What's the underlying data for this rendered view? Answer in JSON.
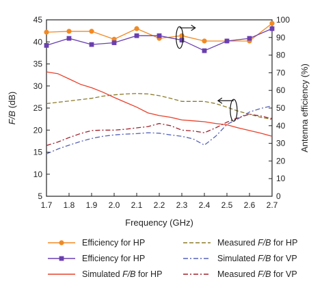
{
  "chart_data": {
    "type": "line",
    "x": [
      1.7,
      1.75,
      1.8,
      1.85,
      1.9,
      1.95,
      2.0,
      2.05,
      2.1,
      2.15,
      2.2,
      2.25,
      2.3,
      2.35,
      2.4,
      2.45,
      2.5,
      2.55,
      2.6,
      2.65,
      2.7
    ],
    "xlabel": "Frequency (GHz)",
    "ylabel_left": "F/B (dB)",
    "ylabel_right": "Antenna efficiency (%)",
    "xlim": [
      1.7,
      2.7
    ],
    "ylim_left": [
      5,
      45
    ],
    "ylim_right": [
      0,
      100
    ],
    "xticks": [
      "1.7",
      "1.8",
      "1.9",
      "2.0",
      "2.1",
      "2.2",
      "2.3",
      "2.4",
      "2.5",
      "2.6",
      "2.7"
    ],
    "yticks_left": [
      "5",
      "10",
      "15",
      "20",
      "25",
      "30",
      "35",
      "40",
      "45"
    ],
    "yticks_right": [
      "0",
      "10",
      "20",
      "30",
      "40",
      "50",
      "60",
      "70",
      "80",
      "90",
      "100"
    ],
    "series": [
      {
        "name": "Efficiency for HP",
        "axis": "right",
        "color": "#f08a24",
        "dash": "solid",
        "marker": "circle",
        "x": [
          1.7,
          1.8,
          1.9,
          2.0,
          2.1,
          2.2,
          2.3,
          2.4,
          2.5,
          2.6,
          2.7
        ],
        "values": [
          93,
          93.5,
          93.5,
          89,
          95,
          89.5,
          91,
          88,
          88,
          88,
          98
        ]
      },
      {
        "name": "Efficiency for HP",
        "axis": "right",
        "color": "#6a3fb0",
        "dash": "solid",
        "marker": "square",
        "x": [
          1.7,
          1.8,
          1.9,
          2.0,
          2.1,
          2.2,
          2.3,
          2.4,
          2.5,
          2.6,
          2.7
        ],
        "values": [
          85.5,
          89.5,
          86,
          87,
          91,
          91,
          88.5,
          82.5,
          88,
          89.5,
          95
        ]
      },
      {
        "name": "Simulated F/B for HP",
        "axis": "left",
        "color": "#e8402a",
        "dash": "solid",
        "marker": "none",
        "x": [
          1.7,
          1.75,
          1.8,
          1.85,
          1.9,
          1.95,
          2.0,
          2.05,
          2.1,
          2.15,
          2.2,
          2.25,
          2.3,
          2.35,
          2.4,
          2.45,
          2.5,
          2.55,
          2.6,
          2.65,
          2.7
        ],
        "values": [
          33.2,
          32.8,
          31.6,
          30.4,
          29.6,
          28.6,
          27.4,
          26.3,
          25.2,
          23.9,
          23.3,
          22.9,
          22.3,
          22.1,
          21.9,
          21.5,
          21.2,
          20.5,
          19.9,
          19.3,
          18.6
        ]
      },
      {
        "name": "Measured F/B for HP",
        "axis": "left",
        "color": "#8b7a2a",
        "dash": "long",
        "marker": "none",
        "x": [
          1.7,
          1.75,
          1.8,
          1.85,
          1.9,
          1.95,
          2.0,
          2.05,
          2.1,
          2.15,
          2.2,
          2.25,
          2.3,
          2.35,
          2.4,
          2.45,
          2.5,
          2.55,
          2.6,
          2.65,
          2.7
        ],
        "values": [
          26.0,
          26.3,
          26.6,
          26.9,
          27.2,
          27.7,
          28.0,
          28.2,
          28.3,
          28.2,
          27.8,
          27.2,
          26.5,
          26.5,
          26.5,
          26.0,
          25.2,
          24.3,
          23.6,
          22.9,
          22.4
        ]
      },
      {
        "name": "Simulated F/B for VP",
        "axis": "left",
        "color": "#5562b8",
        "dash": "dashdot",
        "marker": "none",
        "x": [
          1.7,
          1.75,
          1.8,
          1.85,
          1.9,
          1.95,
          2.0,
          2.05,
          2.1,
          2.15,
          2.2,
          2.25,
          2.3,
          2.35,
          2.4,
          2.45,
          2.5,
          2.55,
          2.6,
          2.65,
          2.7
        ],
        "values": [
          14.6,
          15.7,
          16.6,
          17.4,
          18.1,
          18.6,
          18.9,
          19.1,
          19.2,
          19.4,
          19.3,
          18.9,
          18.6,
          18.0,
          16.6,
          18.6,
          21.3,
          22.6,
          24.1,
          24.9,
          25.5
        ]
      },
      {
        "name": "Measured F/B for VP",
        "axis": "left",
        "color": "#a0202a",
        "dash": "dashdot",
        "marker": "none",
        "x": [
          1.7,
          1.75,
          1.8,
          1.85,
          1.9,
          1.95,
          2.0,
          2.05,
          2.1,
          2.15,
          2.2,
          2.25,
          2.3,
          2.35,
          2.4,
          2.45,
          2.5,
          2.55,
          2.6,
          2.65,
          2.7
        ],
        "values": [
          16.5,
          17.3,
          18.3,
          19.2,
          19.9,
          20.0,
          20.0,
          20.2,
          20.5,
          20.8,
          21.5,
          21.0,
          20.0,
          19.8,
          19.4,
          20.5,
          21.8,
          22.8,
          23.6,
          23.2,
          22.6
        ]
      }
    ],
    "legend": {
      "placement": "bottom",
      "columns": 2,
      "entries": [
        {
          "label": "Efficiency for HP",
          "series_index": 0
        },
        {
          "label": "Measured F/B for HP",
          "series_index": 3
        },
        {
          "label": "Efficiency for HP",
          "series_index": 1
        },
        {
          "label": "Simulated F/B for VP",
          "series_index": 4
        },
        {
          "label": "Simulated F/B for HP",
          "series_index": 2
        },
        {
          "label": "Measured F/B for VP",
          "series_index": 5
        }
      ]
    },
    "annotations": [
      {
        "type": "ellipse-arrow",
        "points_to": "right",
        "x": 2.29,
        "axis_value_right": 90
      },
      {
        "type": "ellipse-arrow",
        "points_to": "left",
        "x": 2.53,
        "axis_value_left": 24.5
      }
    ],
    "grid": false
  }
}
